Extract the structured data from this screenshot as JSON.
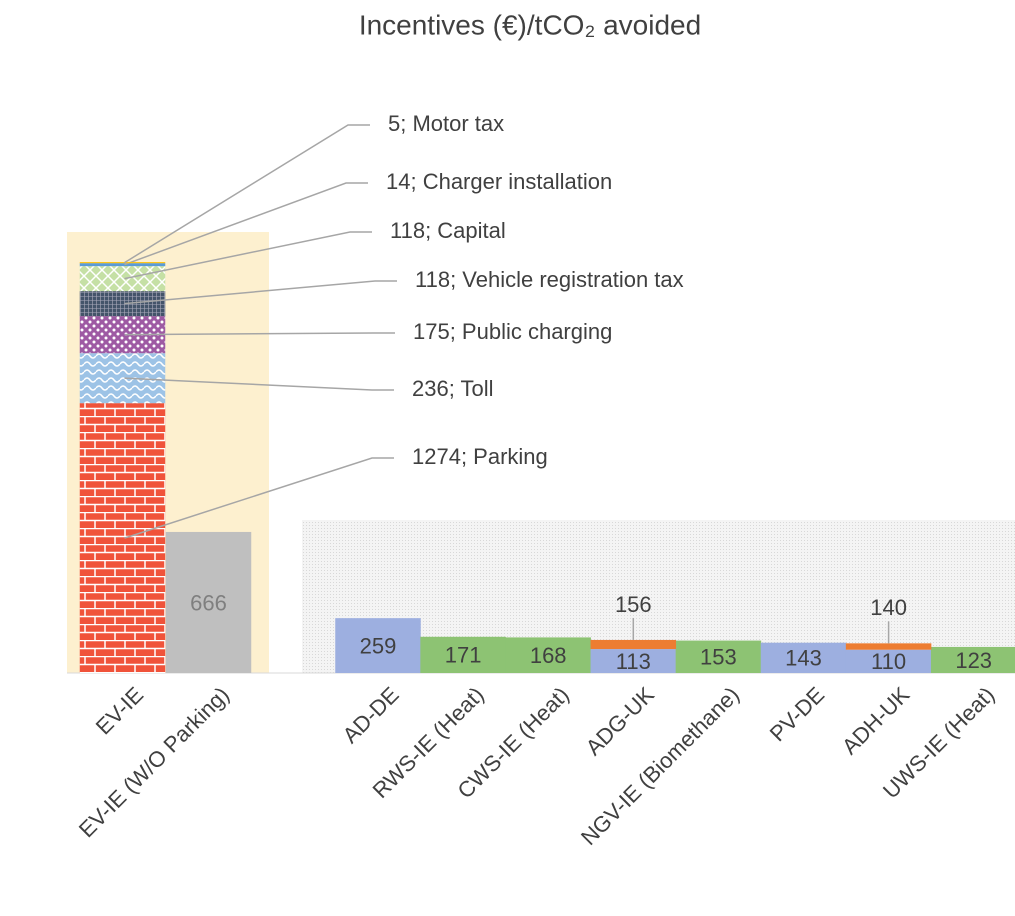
{
  "chart_data": {
    "type": "bar",
    "stacked": true,
    "title": "Incentives (€)/tCO₂ avoided",
    "categories": [
      "EV-IE",
      "EV-IE (W/O Parking)",
      "AD-DE",
      "RWS-IE (Heat)",
      "CWS-IE (Heat)",
      "ADG-UK",
      "NGV-IE (Biomethane)",
      "PV-DE",
      "ADH-UK",
      "UWS-IE (Heat)"
    ],
    "series": [
      {
        "color": "#f0533a",
        "values": [
          1274,
          null,
          null,
          null,
          null,
          null,
          null,
          null,
          null,
          null
        ],
        "value_labels": [
          "1274; Parking",
          null,
          null,
          null,
          null,
          null,
          null,
          null,
          null,
          null
        ]
      },
      {
        "color": "#9dc3e6",
        "values": [
          236,
          null,
          null,
          null,
          null,
          null,
          null,
          null,
          null,
          null
        ],
        "value_labels": [
          "236; Toll",
          null,
          null,
          null,
          null,
          null,
          null,
          null,
          null,
          null
        ]
      },
      {
        "color": "#9e5aa3",
        "values": [
          175,
          null,
          null,
          null,
          null,
          null,
          null,
          null,
          null,
          null
        ],
        "value_labels": [
          "175; Public charging",
          null,
          null,
          null,
          null,
          null,
          null,
          null,
          null,
          null
        ]
      },
      {
        "color": "#44546a",
        "values": [
          118,
          null,
          null,
          null,
          null,
          null,
          null,
          null,
          null,
          null
        ],
        "value_labels": [
          "118; Vehicle registration tax",
          null,
          null,
          null,
          null,
          null,
          null,
          null,
          null,
          null
        ]
      },
      {
        "color": "#c5e0a5",
        "values": [
          118,
          null,
          null,
          null,
          null,
          null,
          null,
          null,
          null,
          null
        ],
        "value_labels": [
          "118; Capital",
          null,
          null,
          null,
          null,
          null,
          null,
          null,
          null,
          null
        ]
      },
      {
        "color": "#5b9bd5",
        "values": [
          14,
          null,
          null,
          null,
          null,
          null,
          null,
          null,
          null,
          null
        ],
        "value_labels": [
          "14; Charger installation",
          null,
          null,
          null,
          null,
          null,
          null,
          null,
          null,
          null
        ]
      },
      {
        "color": "#ffc000",
        "values": [
          5,
          null,
          null,
          null,
          null,
          null,
          null,
          null,
          null,
          null
        ],
        "value_labels": [
          "5; Motor tax",
          null,
          null,
          null,
          null,
          null,
          null,
          null,
          null,
          null
        ]
      },
      {
        "values": [
          null,
          666,
          259,
          171,
          168,
          113,
          153,
          143,
          110,
          123
        ],
        "colors": [
          null,
          "#bfbfbf",
          "#9dafe0",
          "#8dc373",
          "#8dc373",
          "#9dafe0",
          "#8dc373",
          "#9dafe0",
          "#9dafe0",
          "#8dc373"
        ]
      },
      {
        "color": "#ed7d31",
        "values": [
          null,
          null,
          null,
          null,
          null,
          43,
          null,
          null,
          30,
          null
        ],
        "totals": [
          null,
          null,
          null,
          null,
          null,
          156,
          null,
          null,
          140,
          null
        ]
      }
    ]
  }
}
